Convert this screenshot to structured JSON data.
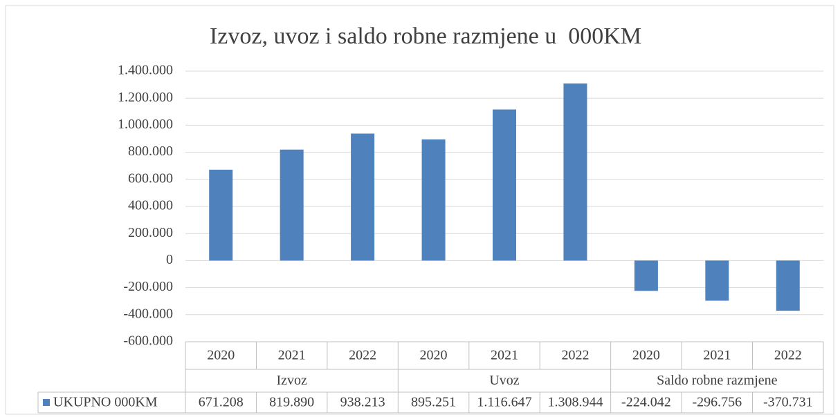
{
  "chart_data": {
    "type": "bar",
    "title": "Izvoz, uvoz i saldo robne razmjene u  000KM",
    "categories": [
      "2020",
      "2021",
      "2022",
      "2020",
      "2021",
      "2022",
      "2020",
      "2021",
      "2022"
    ],
    "category_groups": [
      "Izvoz",
      "Uvoz",
      "Saldo robne razmjene"
    ],
    "series": [
      {
        "name": "UKUPNO 000KM",
        "color": "#4f81bd",
        "values": [
          671208,
          819890,
          938213,
          895251,
          1116647,
          1308944,
          -224042,
          -296756,
          -370731
        ],
        "value_labels": [
          "671.208",
          "819.890",
          "938.213",
          "895.251",
          "1.116.647",
          "1.308.944",
          "-224.042",
          "-296.756",
          "-370.731"
        ]
      }
    ],
    "ylim": [
      -600000,
      1400000
    ],
    "yticks": [
      {
        "value": -600000,
        "label": "-600.000"
      },
      {
        "value": -400000,
        "label": "-400.000"
      },
      {
        "value": -200000,
        "label": "-200.000"
      },
      0,
      {
        "value": 200000,
        "label": "200.000"
      },
      {
        "value": 400000,
        "label": "400.000"
      },
      {
        "value": 600000,
        "label": "600.000"
      },
      {
        "value": 800000,
        "label": "800.000"
      },
      {
        "value": 1000000,
        "label": "1.000.000"
      },
      {
        "value": 1200000,
        "label": "1.200.000"
      },
      {
        "value": 1400000,
        "label": "1.400.000"
      }
    ],
    "grid": true,
    "legend": "table"
  }
}
